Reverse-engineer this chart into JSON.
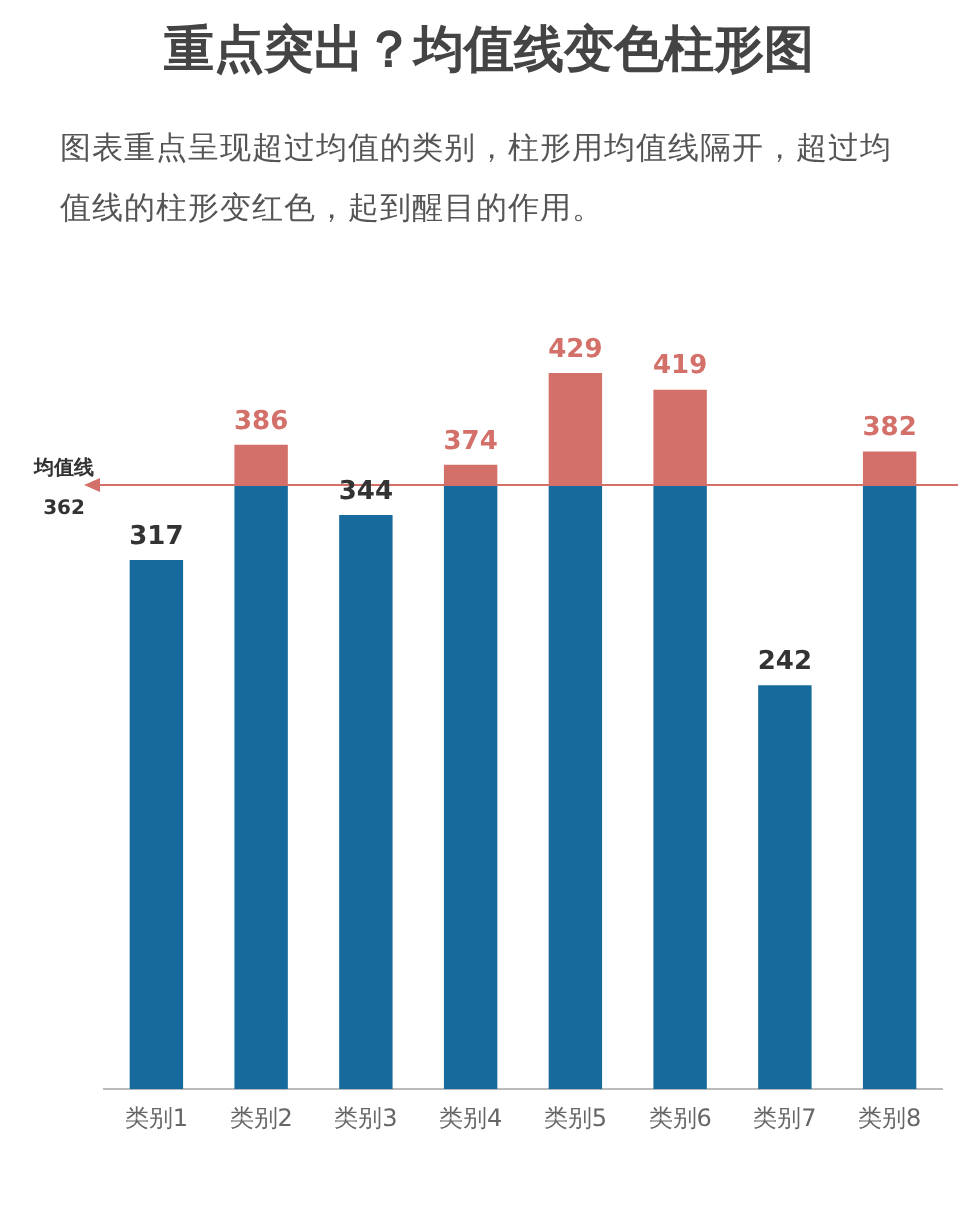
{
  "chart_data": {
    "type": "bar",
    "title": "重点突出？均值线变色柱形图",
    "subtitle": "图表重点呈现超过均值的类别，柱形用均值线隔开，超过均值线的柱形变红色，起到醒目的作用。",
    "categories": [
      "类别1",
      "类别2",
      "类别3",
      "类别4",
      "类别5",
      "类别6",
      "类别7",
      "类别8"
    ],
    "series": [
      {
        "color": "#176b9c",
        "values": [
          317,
          386,
          344,
          374,
          429,
          419,
          242,
          382
        ]
      }
    ],
    "data_labels": true,
    "ref_lines": [
      {
        "axis": "y",
        "value": 362,
        "label": "均值线 362",
        "color": "#d4706a"
      }
    ],
    "grid": false,
    "legend": false
  }
}
